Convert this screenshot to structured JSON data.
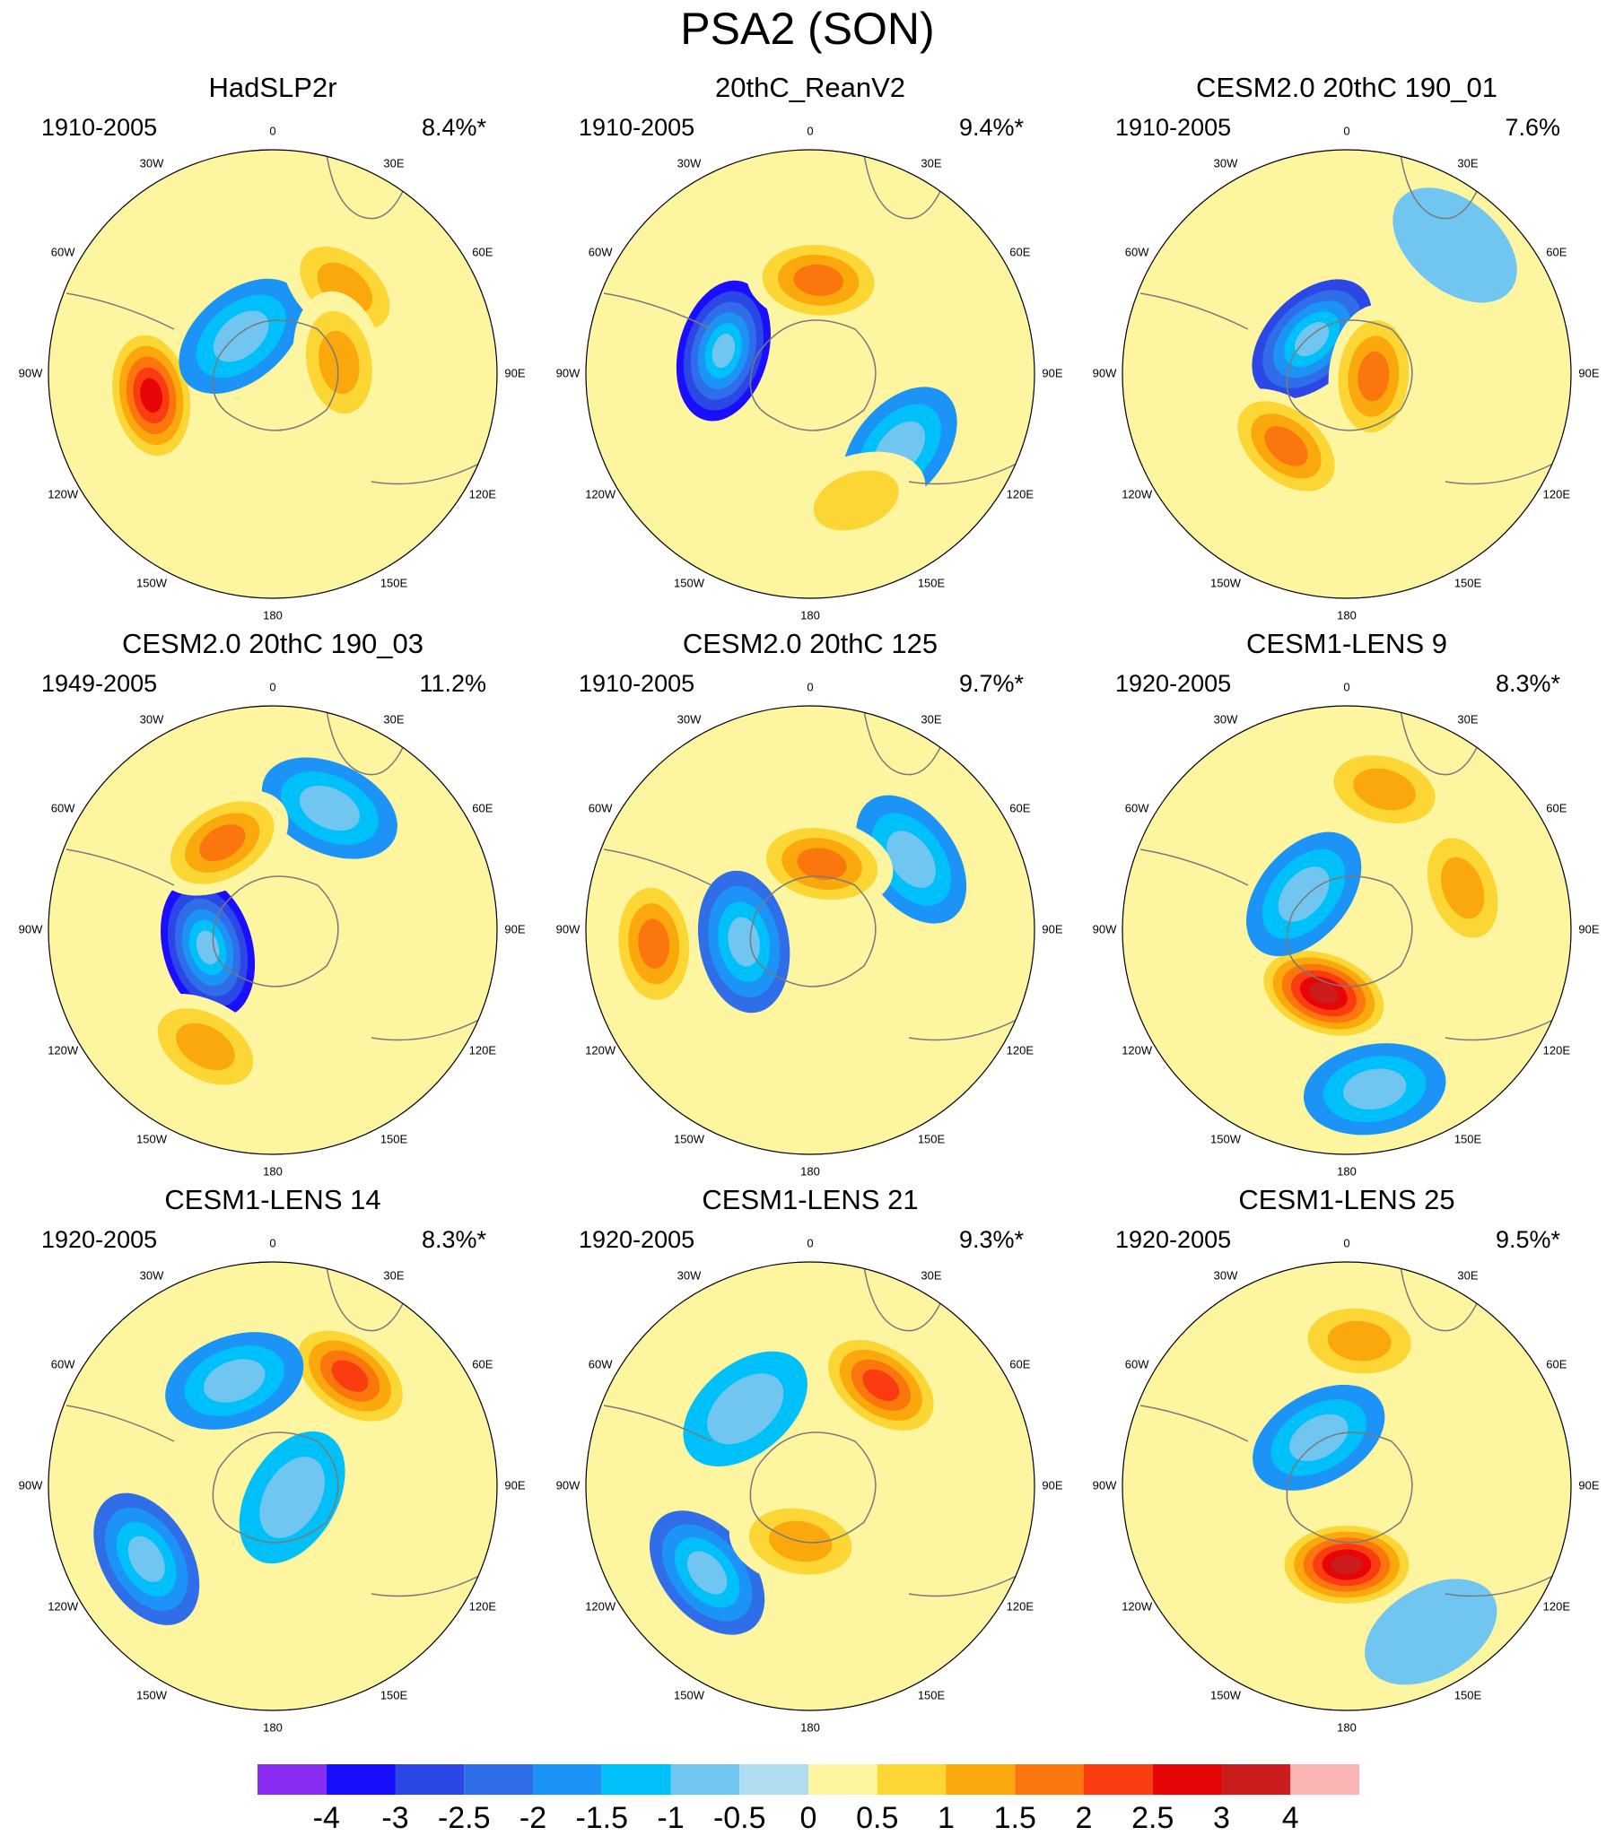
{
  "title": "PSA2 (SON)",
  "chart_data": {
    "type": "contour-map",
    "projection": "south polar stereographic",
    "variable": "PSA2 (SON)",
    "contour_levels": [
      -4,
      -3,
      -2.5,
      -2,
      -1.5,
      -1,
      -0.5,
      0,
      0.5,
      1,
      1.5,
      2,
      2.5,
      3,
      4
    ],
    "colors": [
      "#8a2cf2",
      "#1a0eff",
      "#2b47e6",
      "#2f6ee8",
      "#1c94f7",
      "#00c0f9",
      "#70c6f1",
      "#b2dcf2",
      "#fdf5a0",
      "#fcd634",
      "#fba80d",
      "#fb770e",
      "#fb3b10",
      "#e60607",
      "#cb1d1d",
      "#fab4b4"
    ],
    "colorbar_labels": [
      "-4",
      "-3",
      "-2.5",
      "-2",
      "-1.5",
      "-1",
      "-0.5",
      "0",
      "0.5",
      "1",
      "1.5",
      "2",
      "2.5",
      "3",
      "4"
    ],
    "longitude_labels": [
      "0",
      "30E",
      "60E",
      "90E",
      "120E",
      "150E",
      "180",
      "150W",
      "120W",
      "90W",
      "60W",
      "30W"
    ],
    "panels": [
      {
        "title": "HadSLP2r",
        "years": "1910-2005",
        "variance": "8.4%*",
        "features": [
          {
            "lon": -100,
            "dist": 0.55,
            "value": 2.5
          },
          {
            "lon": -40,
            "dist": 0.22,
            "value": -1.5
          },
          {
            "lon": 40,
            "dist": 0.5,
            "value": 1
          },
          {
            "lon": 80,
            "dist": 0.3,
            "value": 1
          }
        ]
      },
      {
        "title": "20thC_ReanV2",
        "years": "1910-2005",
        "variance": "9.4%*",
        "features": [
          {
            "lon": -75,
            "dist": 0.4,
            "value": -3
          },
          {
            "lon": 130,
            "dist": 0.52,
            "value": -1.5
          },
          {
            "lon": 5,
            "dist": 0.42,
            "value": 1.5
          },
          {
            "lon": 160,
            "dist": 0.6,
            "value": 0.5
          }
        ]
      },
      {
        "title": "CESM2.0 20thC 190_01",
        "years": "1910-2005",
        "variance": "7.6%",
        "features": [
          {
            "lon": -45,
            "dist": 0.22,
            "value": -2.5
          },
          {
            "lon": 40,
            "dist": 0.75,
            "value": -0.5
          },
          {
            "lon": -140,
            "dist": 0.42,
            "value": 1.5
          },
          {
            "lon": 95,
            "dist": 0.12,
            "value": 1.5
          }
        ]
      },
      {
        "title": "CESM2.0 20thC 190_03",
        "years": "1949-2005",
        "variance": "11.2%",
        "features": [
          {
            "lon": -105,
            "dist": 0.3,
            "value": -3
          },
          {
            "lon": 25,
            "dist": 0.6,
            "value": -1.5
          },
          {
            "lon": -30,
            "dist": 0.45,
            "value": 1.5
          },
          {
            "lon": -150,
            "dist": 0.6,
            "value": 1
          }
        ]
      },
      {
        "title": "CESM2.0 20thC 125",
        "years": "1910-2005",
        "variance": "9.7%*",
        "features": [
          {
            "lon": -100,
            "dist": 0.3,
            "value": -2
          },
          {
            "lon": 55,
            "dist": 0.55,
            "value": -1.5
          },
          {
            "lon": -95,
            "dist": 0.7,
            "value": 1.5
          },
          {
            "lon": 10,
            "dist": 0.3,
            "value": 1.5
          }
        ]
      },
      {
        "title": "CESM1-LENS 9",
        "years": "1920-2005",
        "variance": "8.3%*",
        "features": [
          {
            "lon": -160,
            "dist": 0.3,
            "value": 3
          },
          {
            "lon": -50,
            "dist": 0.25,
            "value": -1.5
          },
          {
            "lon": 170,
            "dist": 0.72,
            "value": -1.5
          },
          {
            "lon": 15,
            "dist": 0.65,
            "value": 1
          },
          {
            "lon": 70,
            "dist": 0.55,
            "value": 1
          }
        ]
      },
      {
        "title": "CESM1-LENS 14",
        "years": "1920-2005",
        "variance": "8.3%*",
        "features": [
          {
            "lon": 35,
            "dist": 0.6,
            "value": 2
          },
          {
            "lon": -20,
            "dist": 0.5,
            "value": -1.5
          },
          {
            "lon": -120,
            "dist": 0.65,
            "value": -2
          },
          {
            "lon": 120,
            "dist": 0.1,
            "value": -1
          }
        ]
      },
      {
        "title": "CESM1-LENS 21",
        "years": "1920-2005",
        "variance": "9.3%*",
        "features": [
          {
            "lon": 35,
            "dist": 0.55,
            "value": 2
          },
          {
            "lon": -130,
            "dist": 0.6,
            "value": -2
          },
          {
            "lon": -40,
            "dist": 0.45,
            "value": -1
          },
          {
            "lon": -170,
            "dist": 0.25,
            "value": 1
          }
        ]
      },
      {
        "title": "CESM1-LENS 25",
        "years": "1920-2005",
        "variance": "9.5%*",
        "features": [
          {
            "lon": 180,
            "dist": 0.35,
            "value": 3
          },
          {
            "lon": -30,
            "dist": 0.25,
            "value": -1.5
          },
          {
            "lon": 5,
            "dist": 0.65,
            "value": 1
          },
          {
            "lon": 150,
            "dist": 0.75,
            "value": -0.5
          }
        ]
      }
    ]
  }
}
